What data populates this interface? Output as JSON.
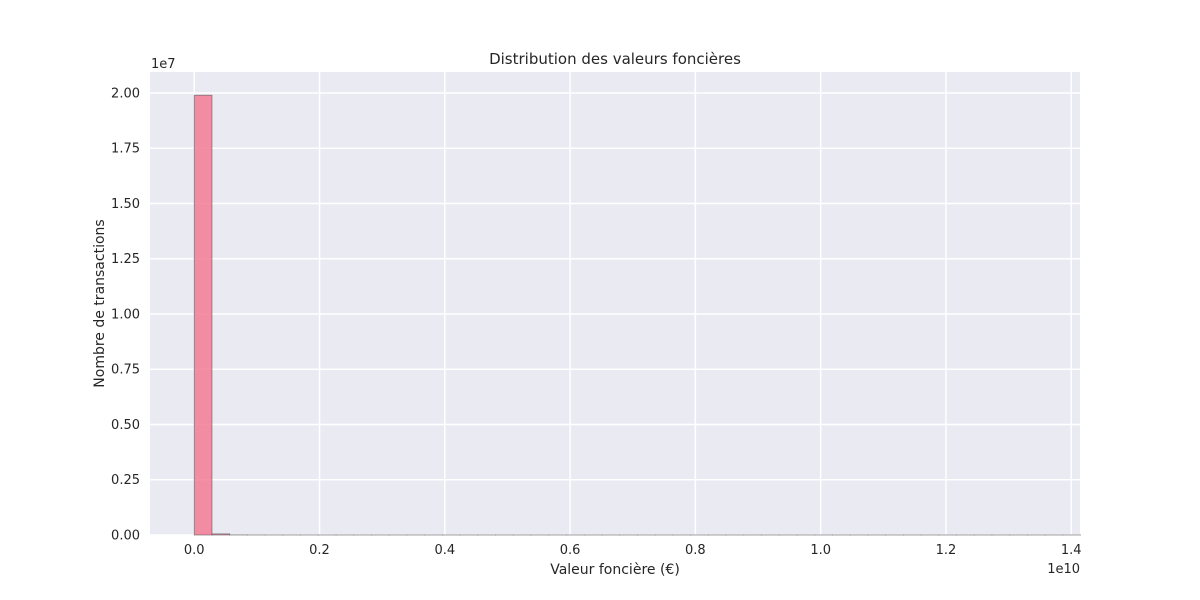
{
  "chart_data": {
    "type": "bar",
    "title": "Distribution des valeurs foncières",
    "xlabel": "Valeur foncière (€)",
    "ylabel": "Nombre de transactions",
    "x_offset_label": "1e10",
    "y_offset_label": "1e7",
    "x_scale": 10000000000,
    "y_scale": 10000000,
    "xlim": [
      -0.0706,
      1.414
    ],
    "ylim": [
      0,
      2.095
    ],
    "x_ticks": [
      0.0,
      0.2,
      0.4,
      0.6,
      0.8,
      1.0,
      1.2,
      1.4
    ],
    "x_tick_labels": [
      "0.0",
      "0.2",
      "0.4",
      "0.6",
      "0.8",
      "1.0",
      "1.2",
      "1.4"
    ],
    "y_ticks": [
      0.0,
      0.25,
      0.5,
      0.75,
      1.0,
      1.25,
      1.5,
      1.75,
      2.0
    ],
    "y_tick_labels": [
      "0.00",
      "0.25",
      "0.50",
      "0.75",
      "1.00",
      "1.25",
      "1.50",
      "1.75",
      "2.00"
    ],
    "bins": 50,
    "x_range": [
      0.0,
      1.415
    ],
    "values": [
      1.99,
      0.005,
      0.0005,
      0.0002,
      0.0001,
      0.0001,
      0.0001,
      0.0001,
      0.0001,
      0.0001,
      0.0001,
      0.0001,
      0.0001,
      0.0001,
      0.0001,
      0.0001,
      0.0001,
      0.0001,
      0.0001,
      0.0001,
      0.0001,
      0.0001,
      0.0001,
      0.0001,
      0.0001,
      0.0001,
      0.0001,
      0.0001,
      0.0001,
      0.0001,
      0.0001,
      0.0001,
      0.0001,
      0.0001,
      0.0001,
      0.0001,
      0.0001,
      0.0001,
      0.0001,
      0.0001,
      0.0001,
      0.0001,
      0.0001,
      0.0001,
      0.0001,
      0.0001,
      0.0001,
      0.0001,
      0.0001,
      0.0001
    ],
    "grid": true,
    "colors": {
      "bar_fill": "#f37b94",
      "bar_edge": "#555555",
      "plot_background": "#eaeaf2",
      "grid": "#ffffff"
    }
  }
}
